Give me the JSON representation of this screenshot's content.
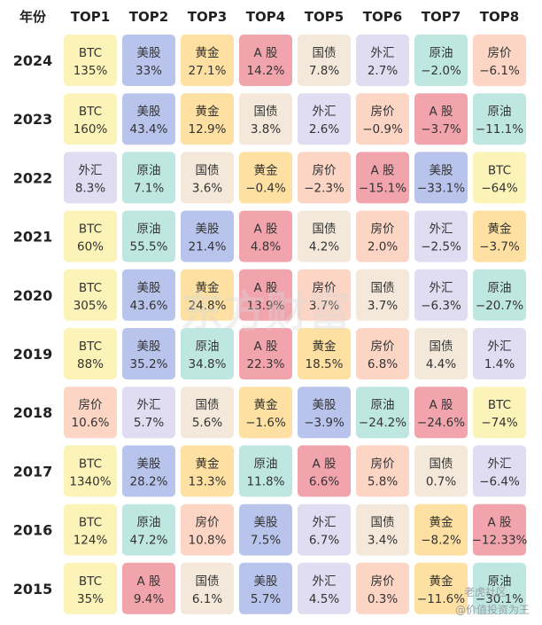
{
  "chart_data": {
    "type": "table",
    "row_header_label": "年份",
    "columns": [
      "TOP1",
      "TOP2",
      "TOP3",
      "TOP4",
      "TOP5",
      "TOP6",
      "TOP7",
      "TOP8"
    ],
    "rows": [
      {
        "year": "2024",
        "cells": [
          {
            "asset": "BTC",
            "value": "135%"
          },
          {
            "asset": "美股",
            "value": "33%"
          },
          {
            "asset": "黄金",
            "value": "27.1%"
          },
          {
            "asset": "A 股",
            "value": "14.2%"
          },
          {
            "asset": "国债",
            "value": "7.8%"
          },
          {
            "asset": "外汇",
            "value": "2.7%"
          },
          {
            "asset": "原油",
            "value": "−2.0%"
          },
          {
            "asset": "房价",
            "value": "−6.1%"
          }
        ]
      },
      {
        "year": "2023",
        "cells": [
          {
            "asset": "BTC",
            "value": "160%"
          },
          {
            "asset": "美股",
            "value": "43.4%"
          },
          {
            "asset": "黄金",
            "value": "12.9%"
          },
          {
            "asset": "国债",
            "value": "3.8%"
          },
          {
            "asset": "外汇",
            "value": "2.6%"
          },
          {
            "asset": "房价",
            "value": "−0.9%"
          },
          {
            "asset": "A 股",
            "value": "−3.7%"
          },
          {
            "asset": "原油",
            "value": "−11.1%"
          }
        ]
      },
      {
        "year": "2022",
        "cells": [
          {
            "asset": "外汇",
            "value": "8.3%"
          },
          {
            "asset": "原油",
            "value": "7.1%"
          },
          {
            "asset": "国债",
            "value": "3.6%"
          },
          {
            "asset": "黄金",
            "value": "−0.4%"
          },
          {
            "asset": "房价",
            "value": "−2.3%"
          },
          {
            "asset": "A 股",
            "value": "−15.1%"
          },
          {
            "asset": "美股",
            "value": "−33.1%"
          },
          {
            "asset": "BTC",
            "value": "−64%"
          }
        ]
      },
      {
        "year": "2021",
        "cells": [
          {
            "asset": "BTC",
            "value": "60%"
          },
          {
            "asset": "原油",
            "value": "55.5%"
          },
          {
            "asset": "美股",
            "value": "21.4%"
          },
          {
            "asset": "A 股",
            "value": "4.8%"
          },
          {
            "asset": "国债",
            "value": "4.2%"
          },
          {
            "asset": "房价",
            "value": "2.0%"
          },
          {
            "asset": "外汇",
            "value": "−2.5%"
          },
          {
            "asset": "黄金",
            "value": "−3.7%"
          }
        ]
      },
      {
        "year": "2020",
        "cells": [
          {
            "asset": "BTC",
            "value": "305%"
          },
          {
            "asset": "美股",
            "value": "43.6%"
          },
          {
            "asset": "黄金",
            "value": "24.8%"
          },
          {
            "asset": "A 股",
            "value": "13.9%"
          },
          {
            "asset": "房价",
            "value": "3.7%"
          },
          {
            "asset": "国债",
            "value": "3.7%"
          },
          {
            "asset": "外汇",
            "value": "−6.3%"
          },
          {
            "asset": "原油",
            "value": "−20.7%"
          }
        ]
      },
      {
        "year": "2019",
        "cells": [
          {
            "asset": "BTC",
            "value": "88%"
          },
          {
            "asset": "美股",
            "value": "35.2%"
          },
          {
            "asset": "原油",
            "value": "34.8%"
          },
          {
            "asset": "A 股",
            "value": "22.3%"
          },
          {
            "asset": "黄金",
            "value": "18.5%"
          },
          {
            "asset": "房价",
            "value": "6.8%"
          },
          {
            "asset": "国债",
            "value": "4.4%"
          },
          {
            "asset": "外汇",
            "value": "1.4%"
          }
        ]
      },
      {
        "year": "2018",
        "cells": [
          {
            "asset": "房价",
            "value": "10.6%"
          },
          {
            "asset": "外汇",
            "value": "5.7%"
          },
          {
            "asset": "国债",
            "value": "5.6%"
          },
          {
            "asset": "黄金",
            "value": "−1.6%"
          },
          {
            "asset": "美股",
            "value": "−3.9%"
          },
          {
            "asset": "原油",
            "value": "−24.2%"
          },
          {
            "asset": "A 股",
            "value": "−24.6%"
          },
          {
            "asset": "BTC",
            "value": "−74%"
          }
        ]
      },
      {
        "year": "2017",
        "cells": [
          {
            "asset": "BTC",
            "value": "1340%"
          },
          {
            "asset": "美股",
            "value": "28.2%"
          },
          {
            "asset": "黄金",
            "value": "13.3%"
          },
          {
            "asset": "原油",
            "value": "11.8%"
          },
          {
            "asset": "A 股",
            "value": "6.6%"
          },
          {
            "asset": "房价",
            "value": "5.8%"
          },
          {
            "asset": "国债",
            "value": "0.7%"
          },
          {
            "asset": "外汇",
            "value": "−6.4%"
          }
        ]
      },
      {
        "year": "2016",
        "cells": [
          {
            "asset": "BTC",
            "value": "124%"
          },
          {
            "asset": "原油",
            "value": "47.2%"
          },
          {
            "asset": "房价",
            "value": "10.8%"
          },
          {
            "asset": "美股",
            "value": "7.5%"
          },
          {
            "asset": "外汇",
            "value": "6.7%"
          },
          {
            "asset": "国债",
            "value": "3.4%"
          },
          {
            "asset": "黄金",
            "value": "−8.2%"
          },
          {
            "asset": "A 股",
            "value": "−12.33%"
          }
        ]
      },
      {
        "year": "2015",
        "cells": [
          {
            "asset": "BTC",
            "value": "35%"
          },
          {
            "asset": "A 股",
            "value": "9.4%"
          },
          {
            "asset": "国债",
            "value": "6.1%"
          },
          {
            "asset": "美股",
            "value": "5.7%"
          },
          {
            "asset": "外汇",
            "value": "4.5%"
          },
          {
            "asset": "房价",
            "value": "0.3%"
          },
          {
            "asset": "黄金",
            "value": "−11.6%"
          },
          {
            "asset": "原油",
            "value": "−30.1%"
          }
        ]
      }
    ],
    "asset_colors": {
      "BTC": "#fbf3b8",
      "美股": "#b9c4ec",
      "黄金": "#fde0a2",
      "A 股": "#f2a4ad",
      "国债": "#f3e8d9",
      "外汇": "#e0dcf1",
      "原油": "#bfe7e2",
      "房价": "#fcd5c5"
    }
  },
  "watermark": "东方财富",
  "credit": {
    "line1": "老虎社区",
    "line2": "@价值投资为王"
  }
}
